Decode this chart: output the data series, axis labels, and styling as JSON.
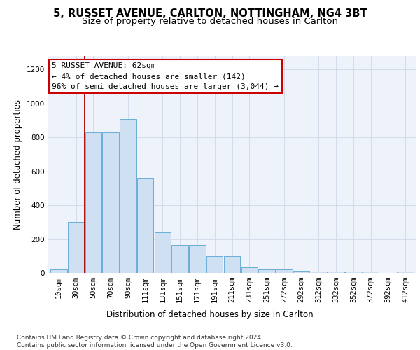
{
  "title_line1": "5, RUSSET AVENUE, CARLTON, NOTTINGHAM, NG4 3BT",
  "title_line2": "Size of property relative to detached houses in Carlton",
  "xlabel": "Distribution of detached houses by size in Carlton",
  "ylabel": "Number of detached properties",
  "categories": [
    "10sqm",
    "30sqm",
    "50sqm",
    "70sqm",
    "90sqm",
    "111sqm",
    "131sqm",
    "151sqm",
    "171sqm",
    "191sqm",
    "211sqm",
    "231sqm",
    "251sqm",
    "272sqm",
    "292sqm",
    "312sqm",
    "332sqm",
    "352sqm",
    "372sqm",
    "392sqm",
    "412sqm"
  ],
  "values": [
    20,
    300,
    830,
    830,
    910,
    560,
    240,
    165,
    165,
    100,
    100,
    35,
    20,
    20,
    12,
    10,
    10,
    10,
    10,
    0,
    8
  ],
  "bar_color": "#cfe0f2",
  "bar_edge_color": "#6aaed6",
  "background_color": "#eef2fb",
  "grid_color": "#d0d8e8",
  "annotation_text": "5 RUSSET AVENUE: 62sqm\n← 4% of detached houses are smaller (142)\n96% of semi-detached houses are larger (3,044) →",
  "annotation_box_color": "#ffffff",
  "annotation_box_edge_color": "#cc0000",
  "vline_color": "#aa0000",
  "vline_x": 1.5,
  "ylim": [
    0,
    1280
  ],
  "yticks": [
    0,
    200,
    400,
    600,
    800,
    1000,
    1200
  ],
  "footer_text": "Contains HM Land Registry data © Crown copyright and database right 2024.\nContains public sector information licensed under the Open Government Licence v3.0.",
  "title_fontsize": 10.5,
  "subtitle_fontsize": 9.5,
  "axis_label_fontsize": 8.5,
  "tick_fontsize": 7.5,
  "annotation_fontsize": 8,
  "footer_fontsize": 6.5
}
